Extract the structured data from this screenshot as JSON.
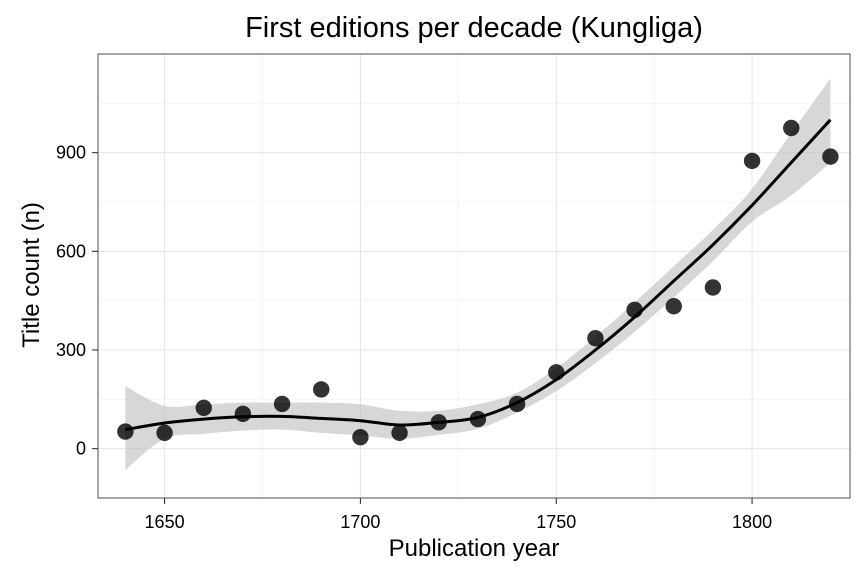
{
  "chart_data": {
    "type": "scatter",
    "title": "First editions per decade (Kungliga)",
    "xlabel": "Publication year",
    "ylabel": "Title count (n)",
    "xlim": [
      1633,
      1825
    ],
    "ylim": [
      -150,
      1200
    ],
    "xticks": [
      1650,
      1700,
      1750,
      1800
    ],
    "yticks": [
      0,
      300,
      600,
      900
    ],
    "grid": true,
    "legend": "none",
    "colors": {
      "points": "#000000",
      "smooth_line": "#000000",
      "ribbon": "#bdbdbd"
    },
    "series": [
      {
        "kind": "points",
        "x": [
          1640,
          1650,
          1660,
          1670,
          1680,
          1690,
          1700,
          1710,
          1720,
          1730,
          1740,
          1750,
          1760,
          1770,
          1780,
          1790,
          1800,
          1810,
          1820
        ],
        "y": [
          52,
          48,
          124,
          106,
          136,
          180,
          35,
          48,
          80,
          90,
          136,
          232,
          336,
          422,
          433,
          490,
          875,
          975,
          888
        ]
      },
      {
        "kind": "smooth",
        "x": [
          1640,
          1650,
          1660,
          1670,
          1680,
          1690,
          1700,
          1710,
          1720,
          1730,
          1740,
          1750,
          1760,
          1770,
          1780,
          1790,
          1800,
          1810,
          1820
        ],
        "y": [
          58,
          78,
          90,
          97,
          98,
          92,
          85,
          72,
          80,
          95,
          140,
          210,
          300,
          400,
          510,
          620,
          740,
          870,
          1000
        ],
        "lower": [
          -65,
          30,
          45,
          55,
          58,
          48,
          40,
          30,
          42,
          60,
          110,
          175,
          260,
          355,
          460,
          570,
          690,
          770,
          870
        ],
        "upper": [
          190,
          130,
          135,
          140,
          140,
          140,
          135,
          115,
          115,
          135,
          170,
          245,
          340,
          445,
          555,
          665,
          790,
          960,
          1125
        ]
      }
    ]
  }
}
